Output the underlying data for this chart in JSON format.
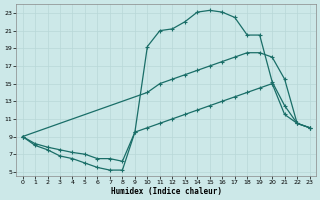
{
  "xlabel": "Humidex (Indice chaleur)",
  "bg_color": "#cce8e8",
  "grid_color": "#b8d8d8",
  "line_color": "#1a6e68",
  "xlim": [
    -0.5,
    23.5
  ],
  "ylim": [
    4.5,
    24
  ],
  "xticks": [
    0,
    1,
    2,
    3,
    4,
    5,
    6,
    7,
    8,
    9,
    10,
    11,
    12,
    13,
    14,
    15,
    16,
    17,
    18,
    19,
    20,
    21,
    22,
    23
  ],
  "yticks": [
    5,
    7,
    9,
    11,
    13,
    15,
    17,
    19,
    21,
    23
  ],
  "curve1_x": [
    0,
    1,
    2,
    3,
    4,
    5,
    6,
    7,
    8,
    9,
    10,
    11,
    12,
    13,
    14,
    15,
    16,
    17,
    18,
    19,
    20,
    21,
    22,
    23
  ],
  "curve1_y": [
    9.0,
    8.0,
    7.5,
    6.8,
    6.5,
    6.0,
    5.5,
    5.2,
    5.2,
    9.5,
    19.2,
    21.0,
    21.2,
    22.0,
    23.1,
    23.3,
    23.1,
    22.5,
    20.5,
    20.5,
    15.2,
    12.5,
    10.5,
    10.0
  ],
  "curve2_x": [
    0,
    10,
    11,
    12,
    13,
    14,
    15,
    16,
    17,
    18,
    19,
    20,
    21,
    22,
    23
  ],
  "curve2_y": [
    9.0,
    14.0,
    15.0,
    15.5,
    16.0,
    16.5,
    17.0,
    17.5,
    18.0,
    18.5,
    18.5,
    18.0,
    15.5,
    10.5,
    10.0
  ],
  "curve3_x": [
    0,
    1,
    2,
    3,
    4,
    5,
    6,
    7,
    8,
    9,
    10,
    11,
    12,
    13,
    14,
    15,
    16,
    17,
    18,
    19,
    20,
    21,
    22,
    23
  ],
  "curve3_y": [
    9.0,
    8.2,
    7.8,
    7.5,
    7.2,
    7.0,
    6.5,
    6.5,
    6.2,
    9.5,
    10.0,
    10.5,
    11.0,
    11.5,
    12.0,
    12.5,
    13.0,
    13.5,
    14.0,
    14.5,
    15.0,
    11.5,
    10.5,
    10.0
  ]
}
